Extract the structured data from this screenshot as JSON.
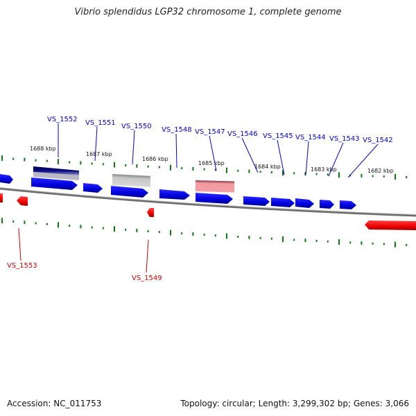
{
  "title": "Vibrio splendidus LGP32 chromosome 1, complete genome",
  "footer": {
    "accession": "Accession: NC_011753",
    "summary": "Topology: circular; Length: 3,299,302 bp; Genes: 3,066"
  },
  "colors": {
    "plus_strand": "#0000cc",
    "minus_strand": "#cc0000",
    "tick": "#117711",
    "backbone": "#777777"
  },
  "kbp_labels": [
    "1688 kbp",
    "1687 kbp",
    "1686 kbp",
    "1685 kbp",
    "1684 kbp",
    "1683 kbp",
    "1682 kbp"
  ],
  "genes_forward": [
    "VS_1552",
    "VS_1551",
    "VS_1550",
    "VS_1548",
    "VS_1547",
    "VS_1546",
    "VS_1545",
    "VS_1544",
    "VS_1543",
    "VS_1542"
  ],
  "genes_reverse": [
    "VS_1553",
    "VS_1549"
  ]
}
